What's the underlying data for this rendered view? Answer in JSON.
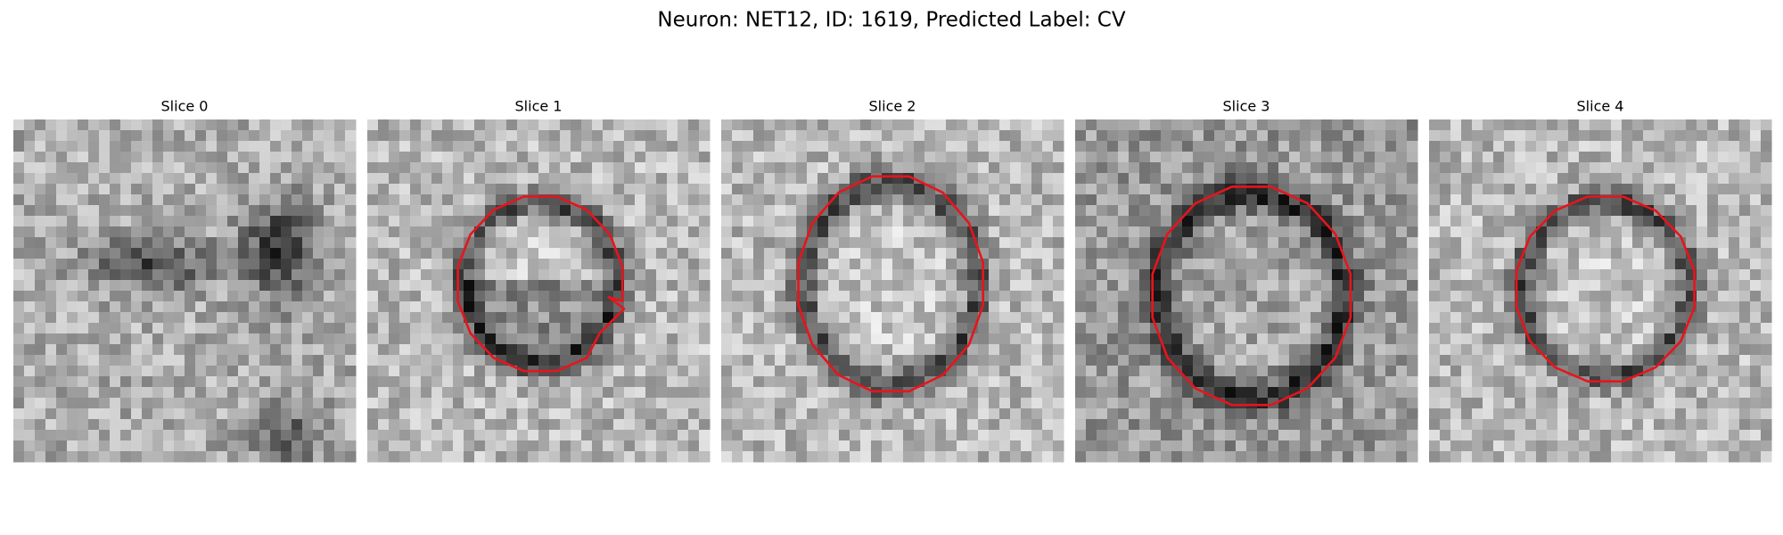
{
  "title": "Neuron: NET12, ID: 1619, Predicted Label: CV",
  "panels": [
    {
      "title": "Slice 0"
    },
    {
      "title": "Slice 1"
    },
    {
      "title": "Slice 2"
    },
    {
      "title": "Slice 3"
    },
    {
      "title": "Slice 4"
    }
  ]
}
